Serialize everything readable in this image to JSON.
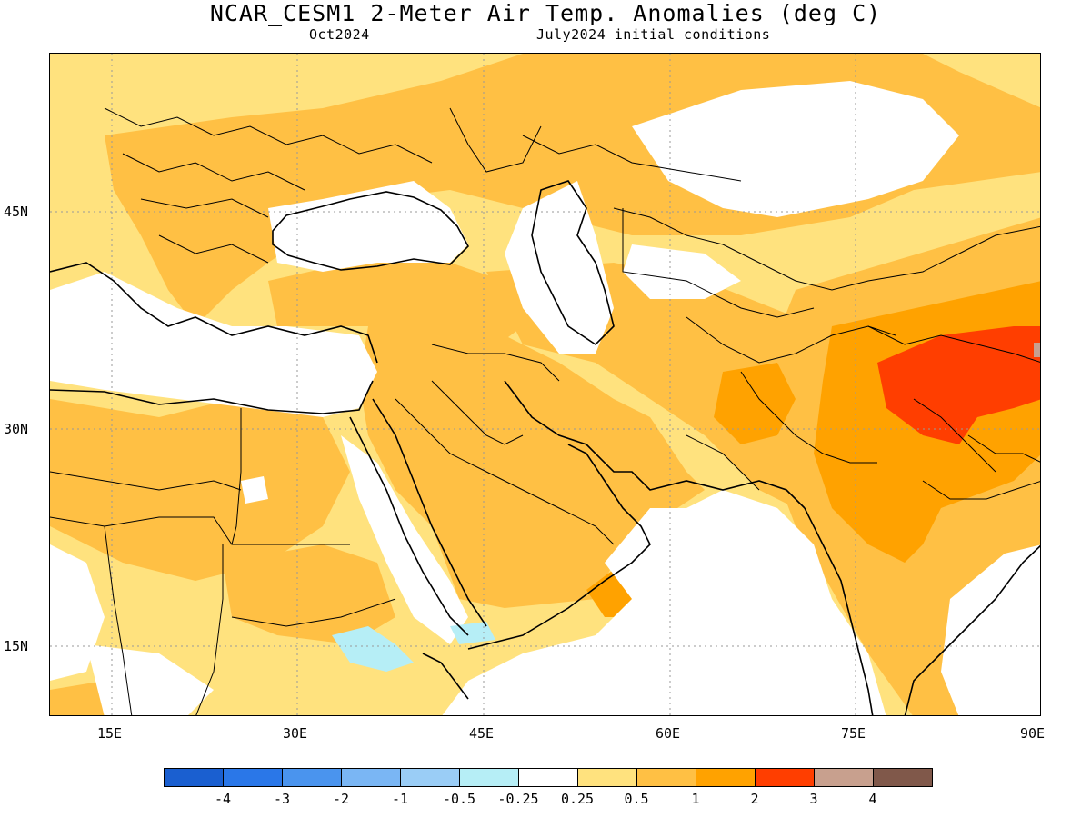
{
  "title": "NCAR_CESM1 2-Meter Air Temp. Anomalies (deg C)",
  "subtitle_left": "Oct2024",
  "subtitle_right": "July2024 initial conditions",
  "y_ticks": [
    "45N",
    "30N",
    "15N"
  ],
  "x_ticks": [
    "15E",
    "30E",
    "45E",
    "60E",
    "75E",
    "90E"
  ],
  "colorbar": {
    "colors": [
      "#1a5fd0",
      "#2a77e8",
      "#4a94ee",
      "#7ab6f4",
      "#9acdf6",
      "#b6eef6",
      "#ffffff",
      "#ffe27e",
      "#ffc044",
      "#ffa200",
      "#ff3e00",
      "#c8a08e",
      "#80584a"
    ],
    "labels": [
      "-4",
      "-3",
      "-2",
      "-1",
      "-0.5",
      "-0.25",
      "0.25",
      "0.5",
      "1",
      "2",
      "3",
      "4"
    ]
  },
  "colors": {
    "light_yellow": "#ffe27e",
    "orange_light": "#ffc044",
    "orange": "#ffa200",
    "red": "#ff3e00",
    "light_blue": "#b6eef6",
    "gray": "#c8a08e"
  }
}
